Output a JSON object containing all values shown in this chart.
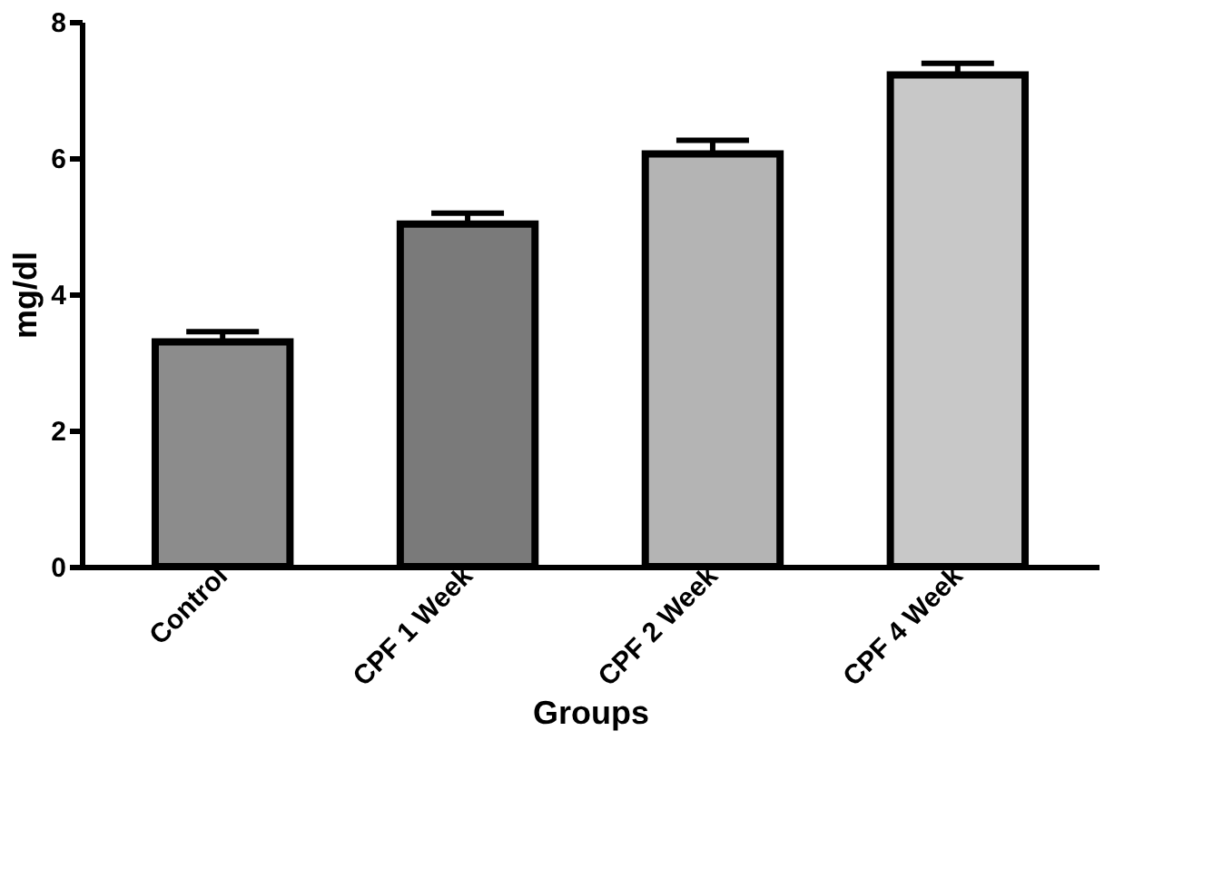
{
  "chart_data": {
    "type": "bar",
    "xlabel": "Groups",
    "ylabel": "mg/dl",
    "categories": [
      "Control",
      "CPF 1 Week",
      "CPF 2 Week",
      "CPF 4 Week"
    ],
    "values": [
      3.3,
      5.03,
      6.06,
      7.22
    ],
    "errors": [
      0.15,
      0.16,
      0.2,
      0.17
    ],
    "colors": [
      "#8c8c8c",
      "#7a7a7a",
      "#b4b4b4",
      "#c8c8c8"
    ],
    "ylim": [
      0,
      8
    ],
    "yticks": [
      0,
      2,
      4,
      6,
      8
    ],
    "grid": false
  }
}
